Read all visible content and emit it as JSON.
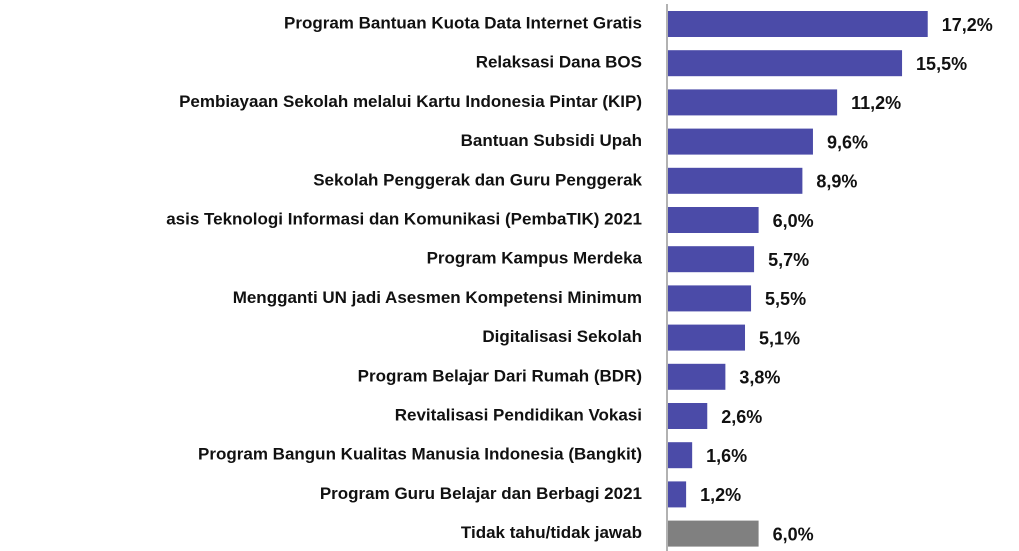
{
  "chart_data": {
    "type": "bar",
    "orientation": "horizontal",
    "categories": [
      "Program Bantuan Kuota Data Internet Gratis",
      "Relaksasi Dana BOS",
      "Pembiayaan Sekolah melalui Kartu Indonesia Pintar (KIP)",
      "Bantuan Subsidi Upah",
      "Sekolah Penggerak dan Guru Penggerak",
      "asis Teknologi Informasi dan Komunikasi (PembaTIK) 2021",
      "Program Kampus Merdeka",
      "Mengganti UN jadi Asesmen Kompetensi Minimum",
      "Digitalisasi Sekolah",
      "Program Belajar Dari Rumah (BDR)",
      "Revitalisasi Pendidikan Vokasi",
      "Program Bangun Kualitas Manusia Indonesia (Bangkit)",
      "Program Guru Belajar dan Berbagi 2021",
      "Tidak tahu/tidak jawab"
    ],
    "values": [
      17.2,
      15.5,
      11.2,
      9.6,
      8.9,
      6.0,
      5.7,
      5.5,
      5.1,
      3.8,
      2.6,
      1.6,
      1.2,
      6.0
    ],
    "value_labels": [
      "17,2%",
      "15,5%",
      "11,2%",
      "9,6%",
      "8,9%",
      "6,0%",
      "5,7%",
      "5,5%",
      "5,1%",
      "3,8%",
      "2,6%",
      "1,6%",
      "1,2%",
      "6,0%"
    ],
    "colors": [
      "#4b4ba8",
      "#4b4ba8",
      "#4b4ba8",
      "#4b4ba8",
      "#4b4ba8",
      "#4b4ba8",
      "#4b4ba8",
      "#4b4ba8",
      "#4b4ba8",
      "#4b4ba8",
      "#4b4ba8",
      "#4b4ba8",
      "#4b4ba8",
      "#808080"
    ]
  }
}
